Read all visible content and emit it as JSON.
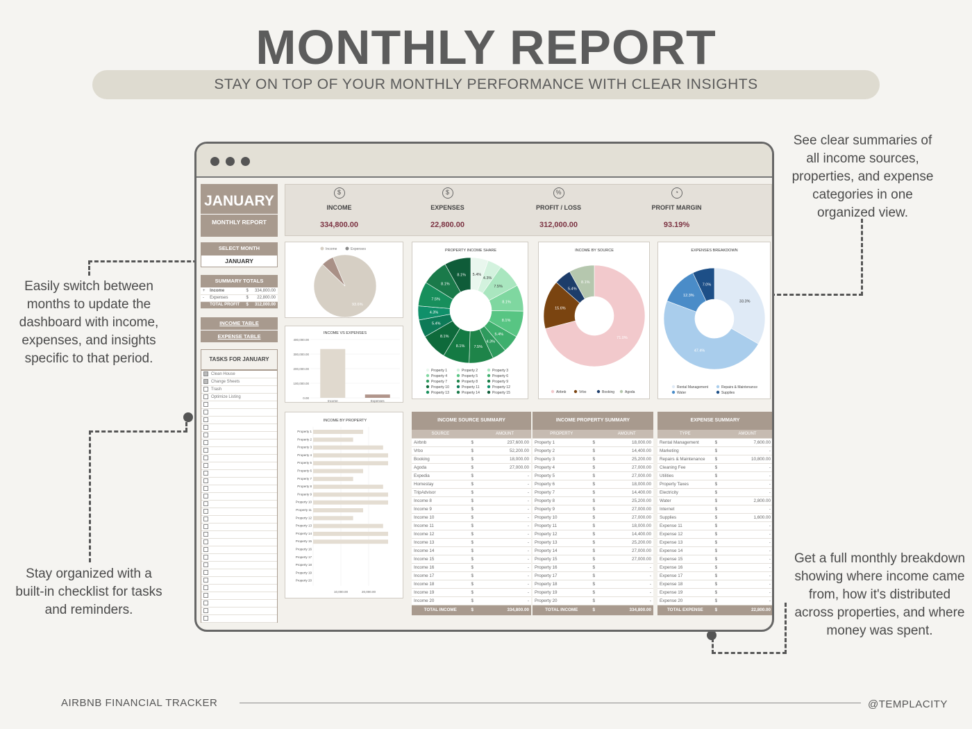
{
  "header": {
    "title": "MONTHLY REPORT",
    "subtitle": "STAY ON TOP OF YOUR MONTHLY PERFORMANCE WITH CLEAR INSIGHTS"
  },
  "callouts": {
    "top_right": "See clear summaries of all income sources, properties, and expense categories in one organized view.",
    "left_top": "Easily switch between months to update the dashboard with income, expenses, and insights specific to that period.",
    "left_bottom": "Stay organized with a built-in checklist for tasks and reminders.",
    "bottom_right": "Get a full monthly breakdown showing where income came from, how it's distributed across properties, and where money was spent."
  },
  "footer": {
    "left": "AIRBNB FINANCIAL TRACKER",
    "right": "@TEMPLACITY"
  },
  "sidebar": {
    "month": "JANUARY",
    "report_label": "MONTHLY REPORT",
    "select_month_label": "SELECT MONTH",
    "selected_month": "JANUARY",
    "summary_totals_label": "SUMMARY TOTALS",
    "totals": [
      {
        "sign": "+",
        "label": "Income",
        "cur": "$",
        "value": "334,800.00"
      },
      {
        "sign": "-",
        "label": "Expenses",
        "cur": "$",
        "value": "22,800.00"
      },
      {
        "sign": "",
        "label": "TOTAL PROFIT",
        "cur": "$",
        "value": "312,000.00"
      }
    ],
    "income_table_link": "INCOME TABLE",
    "expense_table_link": "EXPENSE TABLE",
    "tasks_label": "TASKS FOR JANUARY",
    "tasks": [
      {
        "label": "Clean House",
        "checked": true
      },
      {
        "label": "Change Sheets",
        "checked": true
      },
      {
        "label": "Trash",
        "checked": false
      },
      {
        "label": "Optimize Listing",
        "checked": false
      }
    ]
  },
  "kpis": [
    {
      "icon": "money-bag-icon",
      "label": "INCOME",
      "value": "334,800.00"
    },
    {
      "icon": "receipt-icon",
      "label": "EXPENSES",
      "value": "22,800.00"
    },
    {
      "icon": "percent-icon",
      "label": "PROFIT / LOSS",
      "value": "312,000.00"
    },
    {
      "icon": "pie-coins-icon",
      "label": "PROFIT MARGIN",
      "value": "93.19%"
    }
  ],
  "chart_data": [
    {
      "type": "pie",
      "legend": [
        "Income",
        "Expenses"
      ],
      "values": [
        93.6,
        6.4
      ],
      "labels": [
        "93.6%",
        ""
      ],
      "colors": [
        "#d6cfc4",
        "#a99086"
      ]
    },
    {
      "type": "pie",
      "title": "PROPERTY INCOME SHARE",
      "legend": [
        "Property 1",
        "Property 2",
        "Property 3",
        "Property 4",
        "Property 5",
        "Property 6",
        "Property 7",
        "Property 8",
        "Property 9",
        "Property 10",
        "Property 11",
        "Property 12",
        "Property 13",
        "Property 14",
        "Property 15"
      ],
      "values": [
        5.4,
        4.3,
        7.5,
        8.1,
        8.1,
        5.4,
        4.3,
        7.5,
        8.1,
        8.1,
        5.4,
        4.3,
        7.5,
        8.1,
        8.1
      ],
      "labels": [
        "5.4%",
        "4.3%",
        "7.5%",
        "8.1%",
        "8.1%",
        "5.4%",
        "4.3%",
        "7.5%",
        "8.1%",
        "8.1%",
        "5.4%",
        "4.3%",
        "7.5%",
        "8.1%",
        "8.1%"
      ]
    },
    {
      "type": "pie",
      "title": "INCOME BY SOURCE",
      "legend": [
        "Airbnb",
        "Vrbo",
        "Booking",
        "Agoda"
      ],
      "values": [
        71.0,
        15.6,
        5.4,
        8.1
      ],
      "labels": [
        "71.0%",
        "15.6%",
        "5.4%",
        "8.1%"
      ],
      "colors": [
        "#f2c9cc",
        "#7a4410",
        "#1d3d6a",
        "#b5c7ae"
      ]
    },
    {
      "type": "pie",
      "title": "EXPENSES BREAKDOWN",
      "legend": [
        "Rental Management",
        "Repairs & Maintenance",
        "Water",
        "Supplies"
      ],
      "values": [
        33.3,
        47.4,
        12.3,
        7.0
      ],
      "labels": [
        "33.3%",
        "47.4%",
        "12.3%",
        "7.0%"
      ],
      "colors": [
        "#dfeaf6",
        "#a9cdec",
        "#4a8cc8",
        "#1d4f87"
      ]
    },
    {
      "type": "bar",
      "title": "INCOME VS EXPENSES",
      "categories": [
        "Income",
        "Expenses"
      ],
      "values": [
        334800,
        22800
      ],
      "ylim": [
        0,
        400000
      ],
      "yticks": [
        "400,000.00",
        "300,000.00",
        "200,000.00",
        "100,000.00",
        "0.00"
      ]
    },
    {
      "type": "bar",
      "title": "INCOME BY PROPERTY",
      "categories": [
        "Property 1",
        "Property 2",
        "Property 3",
        "Property 4",
        "Property 5",
        "Property 6",
        "Property 7",
        "Property 8",
        "Property 9",
        "Property 10",
        "Property 11",
        "Property 12",
        "Property 13",
        "Property 14",
        "Property 15",
        "Property 16",
        "Property 17",
        "Property 18",
        "Property 19",
        "Property 20"
      ],
      "values": [
        18000,
        14400,
        25200,
        27000,
        27000,
        18000,
        14400,
        25200,
        27000,
        27000,
        18000,
        14400,
        25200,
        27000,
        27000,
        0,
        0,
        0,
        0,
        0
      ],
      "xticks": [
        "10,000.00",
        "20,000.00"
      ],
      "xlim": [
        0,
        30000
      ]
    }
  ],
  "tables": {
    "income_source": {
      "title": "INCOME SOURCE SUMMARY",
      "col1": "SOURCE",
      "col2": "AMOUNT",
      "rows": [
        [
          "Airbnb",
          "237,600.00"
        ],
        [
          "Vrbo",
          "52,200.00"
        ],
        [
          "Booking",
          "18,000.00"
        ],
        [
          "Agoda",
          "27,000.00"
        ],
        [
          "Expedia",
          "-"
        ],
        [
          "Homestay",
          "-"
        ],
        [
          "TripAdvisor",
          "-"
        ],
        [
          "Income 8",
          "-"
        ],
        [
          "Income 9",
          "-"
        ],
        [
          "Income 10",
          "-"
        ],
        [
          "Income 11",
          "-"
        ],
        [
          "Income 12",
          "-"
        ],
        [
          "Income 13",
          "-"
        ],
        [
          "Income 14",
          "-"
        ],
        [
          "Income 15",
          "-"
        ],
        [
          "Income 16",
          "-"
        ],
        [
          "Income 17",
          "-"
        ],
        [
          "Income 18",
          "-"
        ],
        [
          "Income 19",
          "-"
        ],
        [
          "Income 20",
          "-"
        ]
      ],
      "total_label": "TOTAL INCOME",
      "total": "334,800.00"
    },
    "income_property": {
      "title": "INCOME PROPERTY SUMMARY",
      "col1": "PROPERTY",
      "col2": "AMOUNT",
      "rows": [
        [
          "Property 1",
          "18,000.00"
        ],
        [
          "Property 2",
          "14,400.00"
        ],
        [
          "Property 3",
          "25,200.00"
        ],
        [
          "Property 4",
          "27,000.00"
        ],
        [
          "Property 5",
          "27,000.00"
        ],
        [
          "Property 6",
          "18,000.00"
        ],
        [
          "Property 7",
          "14,400.00"
        ],
        [
          "Property 8",
          "25,200.00"
        ],
        [
          "Property 9",
          "27,000.00"
        ],
        [
          "Property 10",
          "27,000.00"
        ],
        [
          "Property 11",
          "18,000.00"
        ],
        [
          "Property 12",
          "14,400.00"
        ],
        [
          "Property 13",
          "25,200.00"
        ],
        [
          "Property 14",
          "27,000.00"
        ],
        [
          "Property 15",
          "27,000.00"
        ],
        [
          "Property 16",
          "-"
        ],
        [
          "Property 17",
          "-"
        ],
        [
          "Property 18",
          "-"
        ],
        [
          "Property 19",
          "-"
        ],
        [
          "Property 20",
          "-"
        ]
      ],
      "total_label": "TOTAL INCOME",
      "total": "334,800.00"
    },
    "expense": {
      "title": "EXPENSE SUMMARY",
      "col1": "TYPE",
      "col2": "AMOUNT",
      "rows": [
        [
          "Rental Management",
          "7,600.00"
        ],
        [
          "Marketing",
          "-"
        ],
        [
          "Repairs & Maintenance",
          "10,800.00"
        ],
        [
          "Cleaning Fee",
          "-"
        ],
        [
          "Utilities",
          "-"
        ],
        [
          "Property Taxes",
          "-"
        ],
        [
          "Electricity",
          "-"
        ],
        [
          "Water",
          "2,800.00"
        ],
        [
          "Internet",
          "-"
        ],
        [
          "Supplies",
          "1,600.00"
        ],
        [
          "Expense 11",
          "-"
        ],
        [
          "Expense 12",
          "-"
        ],
        [
          "Expense 13",
          "-"
        ],
        [
          "Expense 14",
          "-"
        ],
        [
          "Expense 15",
          "-"
        ],
        [
          "Expense 16",
          "-"
        ],
        [
          "Expense 17",
          "-"
        ],
        [
          "Expense 18",
          "-"
        ],
        [
          "Expense 19",
          "-"
        ],
        [
          "Expense 20",
          "-"
        ]
      ],
      "total_label": "TOTAL EXPENSE",
      "total": "22,800.00"
    }
  }
}
